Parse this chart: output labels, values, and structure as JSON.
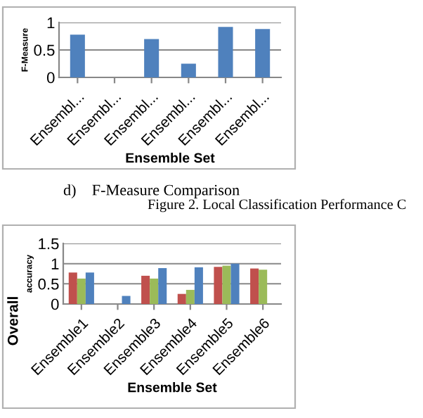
{
  "chart_data": [
    {
      "type": "bar",
      "ylabel": "F-Measure",
      "xlabel": "Ensemble Set",
      "categories": [
        "Ensembl...",
        "Ensembl...",
        "Ensembl...",
        "Ensembl...",
        "Ensembl...",
        "Ensembl..."
      ],
      "series": [
        {
          "color": "#4f81bd",
          "values": [
            0.78,
            0,
            0.7,
            0.25,
            0.92,
            0.88
          ]
        }
      ],
      "ylim": [
        0,
        1
      ],
      "yticks": [
        0,
        0.5,
        1
      ],
      "grid": "y",
      "legend": false,
      "annotations": [
        "d)    F-Measure Comparison",
        "Figure 2. Local Classification Performance C"
      ]
    },
    {
      "type": "bar",
      "ylabel": "accuracy",
      "xlabel": "Ensemble Set",
      "categories": [
        "Ensemble1",
        "Ensemble2",
        "Ensemble3",
        "Ensemble4",
        "Ensemble5",
        "Ensemble6"
      ],
      "series": [
        {
          "color": "#c0504d",
          "values": [
            0.78,
            0,
            0.7,
            0.25,
            0.92,
            0.88
          ]
        },
        {
          "color": "#9bbb59",
          "values": [
            0.63,
            0,
            0.63,
            0.35,
            0.95,
            0.85
          ]
        },
        {
          "color": "#4f81bd",
          "values": [
            0.78,
            0.2,
            0.89,
            0.91,
            1.0,
            0
          ]
        }
      ],
      "ylim": [
        0,
        1.5
      ],
      "yticks": [
        0,
        0.5,
        1,
        1.5
      ],
      "grid": "y",
      "legend": false,
      "annotations": [
        "Overall"
      ]
    }
  ]
}
